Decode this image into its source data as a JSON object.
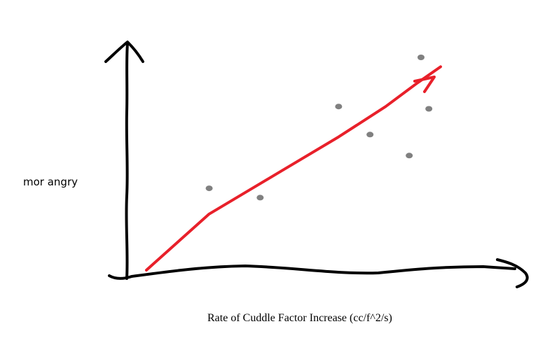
{
  "chart_data": {
    "type": "scatter",
    "title": "",
    "xlabel": "Rate of Cuddle Factor Increase (cc/f^2/s)",
    "ylabel": "mor angry",
    "xlim": [
      0,
      100
    ],
    "ylim": [
      0,
      100
    ],
    "grid": false,
    "points": [
      {
        "x": 21,
        "y": 38
      },
      {
        "x": 34,
        "y": 34
      },
      {
        "x": 54,
        "y": 73
      },
      {
        "x": 62,
        "y": 61
      },
      {
        "x": 72,
        "y": 52
      },
      {
        "x": 75,
        "y": 94
      },
      {
        "x": 77,
        "y": 72
      }
    ],
    "trend": {
      "x": [
        5,
        21,
        39,
        54,
        66,
        74,
        80
      ],
      "y": [
        3,
        27,
        45,
        60,
        73,
        83,
        90
      ]
    },
    "colors": {
      "points": "#808080",
      "trend": "#e8202a",
      "axes": "#000000"
    }
  }
}
